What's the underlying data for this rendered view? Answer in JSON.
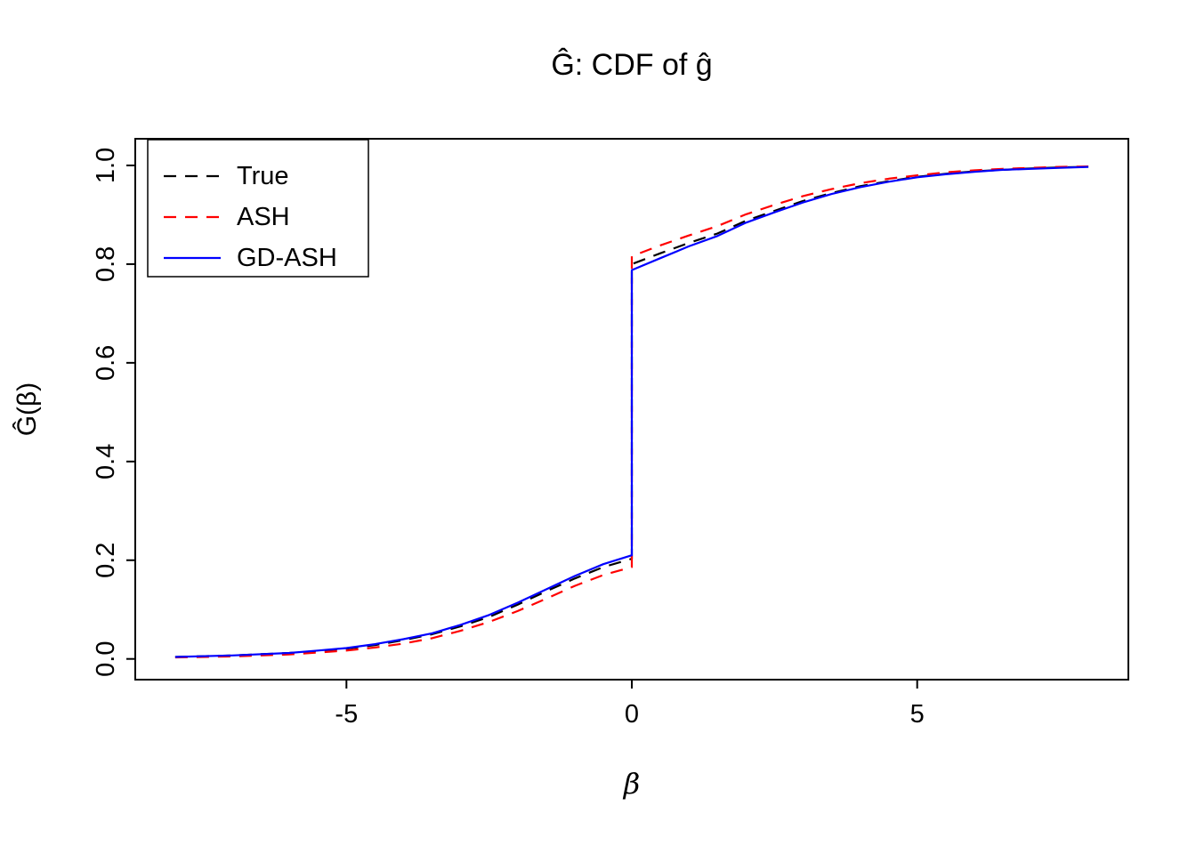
{
  "chart_data": {
    "type": "line",
    "title": "Ĝ: CDF of ĝ",
    "xlabel": "β",
    "ylabel": "Ĝ(β)",
    "xlim": [
      -8.7,
      8.7
    ],
    "ylim": [
      -0.042,
      1.054
    ],
    "grid": false,
    "legend_position": "top-left",
    "x_ticks": [
      {
        "v": -5,
        "label": "-5"
      },
      {
        "v": 0,
        "label": "0"
      },
      {
        "v": 5,
        "label": "5"
      }
    ],
    "y_ticks": [
      {
        "v": 0.0,
        "label": "0.0"
      },
      {
        "v": 0.2,
        "label": "0.2"
      },
      {
        "v": 0.4,
        "label": "0.4"
      },
      {
        "v": 0.6,
        "label": "0.6"
      },
      {
        "v": 0.8,
        "label": "0.8"
      },
      {
        "v": 1.0,
        "label": "1.0"
      }
    ],
    "x": [
      -8,
      -7,
      -6,
      -5.5,
      -5,
      -4.5,
      -4,
      -3.5,
      -3,
      -2.5,
      -2,
      -1.5,
      -1,
      -0.5,
      0,
      0,
      0.5,
      1,
      1.5,
      2,
      2.5,
      3,
      3.5,
      4,
      4.5,
      5,
      5.5,
      6,
      6.5,
      7,
      7.5,
      8
    ],
    "series": [
      {
        "name": "True",
        "color": "#000000",
        "dash": "dashed",
        "values": [
          0.004,
          0.007,
          0.012,
          0.016,
          0.021,
          0.028,
          0.038,
          0.05,
          0.066,
          0.085,
          0.11,
          0.137,
          0.163,
          0.186,
          0.203,
          0.8,
          0.822,
          0.843,
          0.862,
          0.888,
          0.908,
          0.928,
          0.944,
          0.958,
          0.968,
          0.977,
          0.983,
          0.988,
          0.991,
          0.994,
          0.996,
          0.997
        ]
      },
      {
        "name": "ASH",
        "color": "#FF0000",
        "dash": "dashed",
        "values": [
          0.003,
          0.005,
          0.009,
          0.013,
          0.017,
          0.023,
          0.031,
          0.042,
          0.057,
          0.075,
          0.097,
          0.122,
          0.148,
          0.17,
          0.186,
          0.816,
          0.838,
          0.858,
          0.877,
          0.901,
          0.92,
          0.938,
          0.952,
          0.964,
          0.973,
          0.98,
          0.986,
          0.99,
          0.993,
          0.995,
          0.997,
          0.998
        ]
      },
      {
        "name": "GD-ASH",
        "color": "#0000FF",
        "dash": "solid",
        "values": [
          0.004,
          0.007,
          0.012,
          0.017,
          0.022,
          0.03,
          0.04,
          0.052,
          0.069,
          0.089,
          0.114,
          0.141,
          0.168,
          0.192,
          0.21,
          0.788,
          0.812,
          0.836,
          0.857,
          0.884,
          0.905,
          0.925,
          0.942,
          0.956,
          0.967,
          0.976,
          0.982,
          0.987,
          0.991,
          0.993,
          0.995,
          0.997
        ]
      }
    ]
  }
}
